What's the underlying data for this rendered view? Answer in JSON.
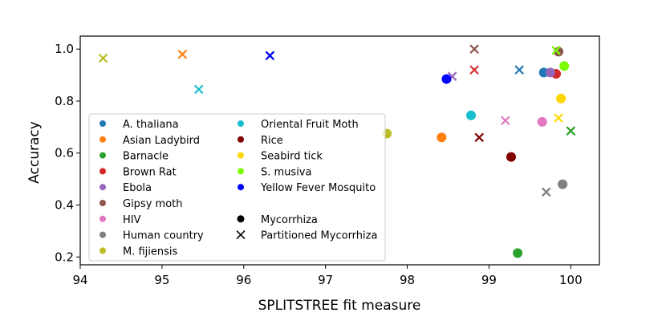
{
  "chart_data": {
    "type": "scatter",
    "xlabel": "SPLITSTREE fit measure",
    "ylabel": "Accuracy",
    "xlim": [
      94,
      100.35
    ],
    "ylim": [
      0.17,
      1.05
    ],
    "xticks": [
      94,
      95,
      96,
      97,
      98,
      99,
      100
    ],
    "yticks": [
      0.2,
      0.4,
      0.6,
      0.8,
      1.0
    ],
    "xtick_labels": [
      "94",
      "95",
      "96",
      "97",
      "98",
      "99",
      "100"
    ],
    "ytick_labels": [
      "0.2",
      "0.4",
      "0.6",
      "0.8",
      "1.0"
    ],
    "legend_position": "center-left",
    "legend_markers": [
      {
        "label": "Mycorrhiza",
        "marker": "circle"
      },
      {
        "label": "Partitioned Mycorrhiza",
        "marker": "x"
      }
    ],
    "series": [
      {
        "name": "A. thaliana",
        "color": "#1f77b4",
        "mycorrhiza": [
          99.67,
          0.91
        ],
        "partitioned": [
          99.37,
          0.92
        ]
      },
      {
        "name": "Asian Ladybird",
        "color": "#ff7f0e",
        "mycorrhiza": [
          98.42,
          0.66
        ],
        "partitioned": [
          95.25,
          0.98
        ]
      },
      {
        "name": "Barnacle",
        "color": "#2ca02c",
        "mycorrhiza": [
          99.35,
          0.215
        ],
        "partitioned": [
          100.0,
          0.685
        ]
      },
      {
        "name": "Brown Rat",
        "color": "#d62728",
        "mycorrhiza": [
          99.82,
          0.905
        ],
        "partitioned": [
          98.82,
          0.92
        ]
      },
      {
        "name": "Ebola",
        "color": "#9467bd",
        "mycorrhiza": [
          99.75,
          0.91
        ],
        "partitioned": [
          98.55,
          0.895
        ]
      },
      {
        "name": "Gipsy moth",
        "color": "#8c564b",
        "mycorrhiza": [
          99.85,
          0.99
        ],
        "partitioned": [
          98.82,
          1.0
        ]
      },
      {
        "name": "HIV",
        "color": "#e377c2",
        "mycorrhiza": [
          99.65,
          0.72
        ],
        "partitioned": [
          99.2,
          0.725
        ]
      },
      {
        "name": "Human country",
        "color": "#7f7f7f",
        "mycorrhiza": [
          99.9,
          0.48
        ],
        "partitioned": [
          99.7,
          0.45
        ]
      },
      {
        "name": "M. fijiensis",
        "color": "#bcbd22",
        "mycorrhiza": [
          97.75,
          0.675
        ],
        "partitioned": [
          94.28,
          0.965
        ]
      },
      {
        "name": "Oriental Fruit Moth",
        "color": "#17becf",
        "mycorrhiza": [
          98.78,
          0.745
        ],
        "partitioned": [
          95.45,
          0.845
        ]
      },
      {
        "name": "Rice",
        "color": "#800000",
        "mycorrhiza": [
          99.27,
          0.585
        ],
        "partitioned": [
          98.88,
          0.66
        ]
      },
      {
        "name": "Seabird tick",
        "color": "#ffd700",
        "mycorrhiza": [
          99.88,
          0.81
        ],
        "partitioned": [
          99.85,
          0.735
        ]
      },
      {
        "name": "S. musiva",
        "color": "#7cfc00",
        "mycorrhiza": [
          99.92,
          0.935
        ],
        "partitioned": [
          99.82,
          0.995
        ]
      },
      {
        "name": "Yellow Fever Mosquito",
        "color": "#0000ff",
        "mycorrhiza": [
          98.48,
          0.885
        ],
        "partitioned": [
          96.32,
          0.975
        ]
      }
    ]
  }
}
